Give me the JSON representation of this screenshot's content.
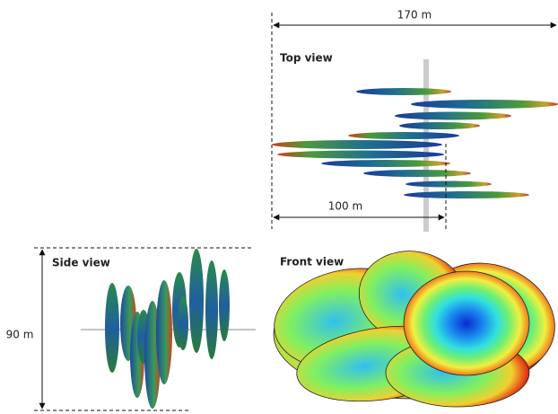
{
  "top_view": {
    "title": "Top view",
    "width_label": "170 m",
    "inner_label": "100 m"
  },
  "side_view": {
    "title": "Side view",
    "height_label": "90 m"
  },
  "front_view": {
    "title": "Front view"
  }
}
